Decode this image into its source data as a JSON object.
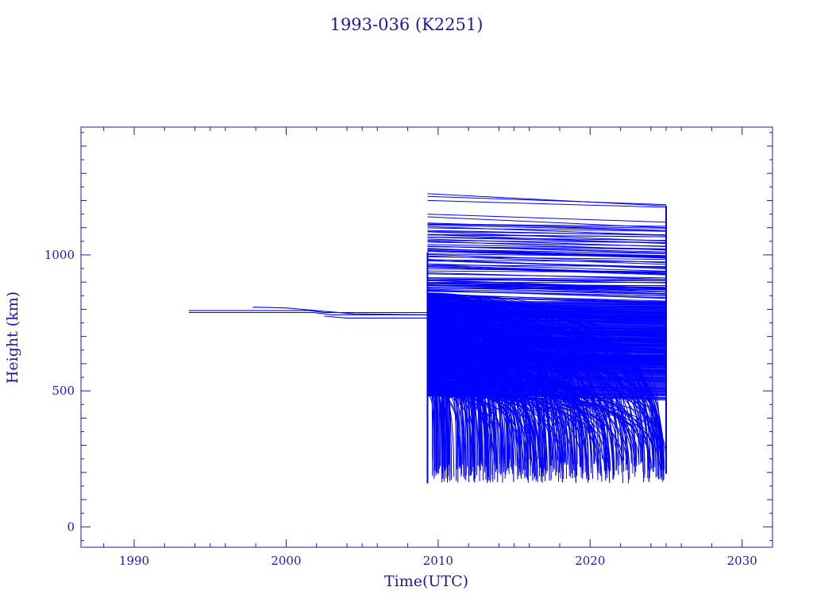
{
  "chart_data": {
    "type": "line",
    "title": "1993-036 (K2251)",
    "xlabel": "Time(UTC)",
    "ylabel": "Height (km)",
    "xlim": [
      1986.5,
      2032.0
    ],
    "ylim": [
      -75,
      1470
    ],
    "xticks": [
      1990,
      2000,
      2010,
      2020,
      2030
    ],
    "xtick_labels": [
      "1990",
      "2000",
      "2010",
      "2020",
      "2030"
    ],
    "yticks": [
      0,
      500,
      1000
    ],
    "ytick_labels": [
      "0",
      "500",
      "1000"
    ],
    "grid": false,
    "colors": {
      "axis": "#1a1aa8",
      "series": "#0000ff"
    },
    "parent_object": {
      "name": "1993-036 (K2251)",
      "segments": [
        {
          "x": [
            1993.6,
            2001.5,
            2002.5,
            2009.3
          ],
          "y": [
            795,
            795,
            788,
            788
          ]
        },
        {
          "x": [
            1993.6,
            2001.8,
            2003.0,
            2009.3
          ],
          "y": [
            788,
            788,
            780,
            780
          ]
        },
        {
          "x": [
            1997.8,
            2000.0,
            2002.0,
            2004.5,
            2009.3
          ],
          "y": [
            808,
            805,
            795,
            783,
            780
          ]
        },
        {
          "x": [
            2002.5,
            2004.0,
            2009.3
          ],
          "y": [
            775,
            768,
            768
          ]
        }
      ]
    },
    "debris": {
      "first_epoch": 2009.3,
      "last_epoch": 2025.0,
      "min_height": 160,
      "max_height": 1225,
      "dense_band": [
        600,
        830
      ],
      "upper_traces": [
        {
          "x": [
            2009.3,
            2025.0
          ],
          "y": [
            1225,
            1180
          ]
        },
        {
          "x": [
            2009.3,
            2025.0
          ],
          "y": [
            1215,
            1185
          ]
        },
        {
          "x": [
            2009.3,
            2025.0
          ],
          "y": [
            1200,
            1175
          ]
        },
        {
          "x": [
            2009.3,
            2025.0
          ],
          "y": [
            1150,
            1120
          ]
        },
        {
          "x": [
            2009.3,
            2025.0
          ],
          "y": [
            1140,
            1100
          ]
        }
      ]
    }
  }
}
